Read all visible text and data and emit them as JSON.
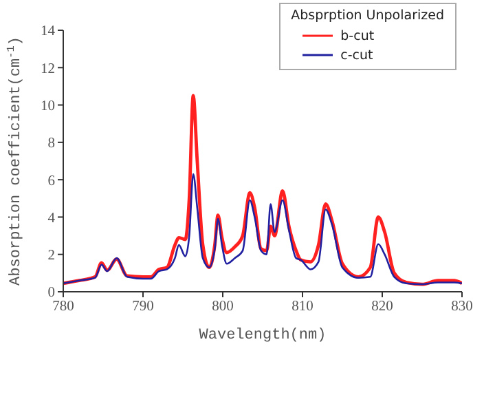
{
  "chart_data": {
    "type": "line",
    "xlabel": "Wavelength(nm)",
    "ylabel": "Absorption coefficient(cm$^{-1}$)",
    "legend_title": "Absprption Unpolarized",
    "legend": "top right",
    "marker": "none",
    "line_style": "solid",
    "x": [
      780,
      782,
      784,
      784.8,
      785.5,
      786.7,
      788,
      790,
      791,
      792,
      793,
      794,
      794.5,
      795.3,
      795.8,
      796.3,
      796.8,
      797.5,
      798.3,
      799,
      799.4,
      799.9,
      800.5,
      801.5,
      802.5,
      803.4,
      804,
      804.8,
      805.5,
      806,
      806.5,
      807.5,
      808.3,
      809.2,
      809.8,
      811,
      812,
      812.9,
      813.7,
      815,
      817,
      818.5,
      819.5,
      820.3,
      821.5,
      823,
      825,
      827,
      829,
      830
    ],
    "xlim": [
      780,
      830
    ],
    "xticks": [
      780,
      790,
      800,
      810,
      820,
      830
    ],
    "ylim": [
      0,
      14
    ],
    "yticks": [
      0,
      2,
      4,
      6,
      8,
      10,
      12,
      14
    ],
    "series": [
      {
        "name": "b-cut",
        "color": "#ff2020",
        "values": [
          0.45,
          0.6,
          0.8,
          1.55,
          1.15,
          1.75,
          0.85,
          0.8,
          0.8,
          1.2,
          1.3,
          2.5,
          2.9,
          2.8,
          5,
          10.5,
          7,
          2.5,
          1.3,
          2.5,
          4.1,
          2.9,
          2.1,
          2.4,
          3.0,
          5.3,
          4.5,
          2.3,
          2.2,
          3.5,
          3.0,
          5.4,
          3.5,
          2.2,
          1.7,
          1.6,
          2.5,
          4.7,
          3.8,
          1.5,
          0.8,
          1.3,
          4.0,
          3.2,
          1.0,
          0.5,
          0.4,
          0.6,
          0.6,
          0.45
        ]
      },
      {
        "name": "c-cut",
        "color": "#2020a0",
        "values": [
          0.45,
          0.6,
          0.75,
          1.45,
          1.1,
          1.8,
          0.8,
          0.7,
          0.7,
          1.1,
          1.2,
          1.8,
          2.5,
          1.9,
          3,
          6.3,
          4.5,
          1.8,
          1.3,
          2.3,
          3.9,
          2.5,
          1.5,
          1.8,
          2.2,
          4.9,
          4.0,
          2.2,
          2.0,
          4.7,
          3.2,
          4.9,
          3.3,
          1.8,
          1.7,
          1.2,
          1.6,
          4.4,
          3.6,
          1.3,
          0.75,
          0.8,
          2.55,
          2.0,
          0.8,
          0.45,
          0.4,
          0.5,
          0.5,
          0.45
        ]
      }
    ]
  }
}
